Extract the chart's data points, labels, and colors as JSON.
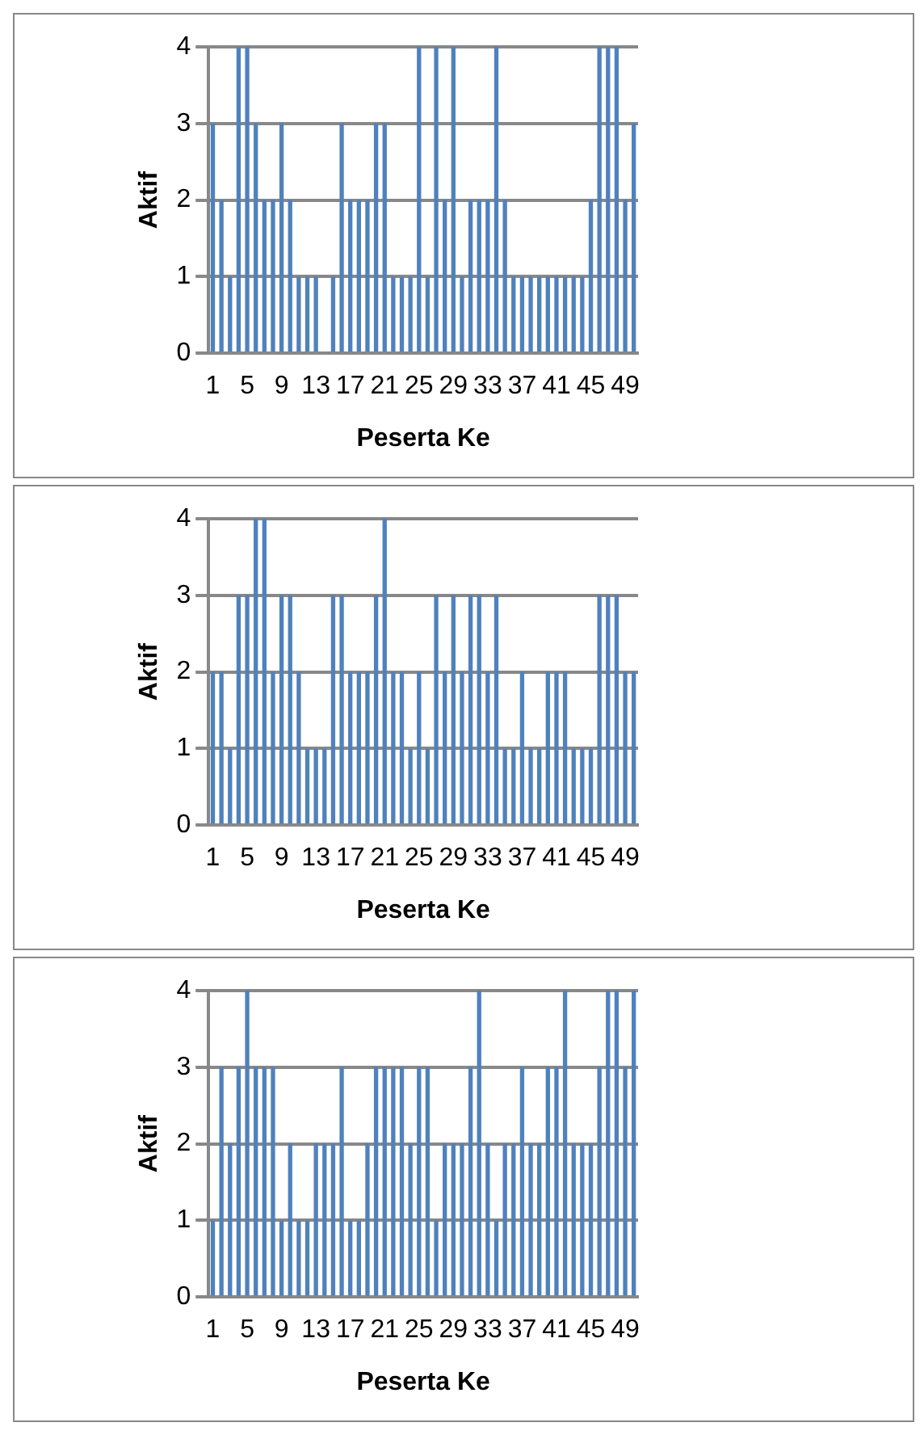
{
  "chart_data": [
    {
      "type": "bar",
      "xlabel": "Peserta Ke",
      "ylabel": "Aktif",
      "categories": [
        "1",
        null,
        null,
        null,
        "5",
        null,
        null,
        null,
        "9",
        null,
        null,
        null,
        "13",
        null,
        null,
        null,
        "17",
        null,
        null,
        null,
        "21",
        null,
        null,
        null,
        "25",
        null,
        null,
        null,
        "29",
        null,
        null,
        null,
        "33",
        null,
        null,
        null,
        "37",
        null,
        null,
        null,
        "41",
        null,
        null,
        null,
        "45",
        null,
        null,
        null,
        "49",
        null
      ],
      "values": [
        3,
        2,
        1,
        4,
        4,
        3,
        2,
        2,
        3,
        2,
        1,
        1,
        1,
        0,
        1,
        3,
        2,
        2,
        2,
        3,
        3,
        1,
        1,
        1,
        4,
        1,
        4,
        2,
        4,
        1,
        2,
        2,
        2,
        4,
        2,
        1,
        1,
        1,
        1,
        1,
        1,
        1,
        1,
        1,
        2,
        4,
        4,
        4,
        2,
        3
      ],
      "color": "#4f81bd",
      "ylim": [
        0,
        4
      ],
      "yticks": [
        0,
        1,
        2,
        3,
        4
      ],
      "grid": "y"
    },
    {
      "type": "bar",
      "xlabel": "Peserta Ke",
      "ylabel": "Aktif",
      "categories": [
        "1",
        null,
        null,
        null,
        "5",
        null,
        null,
        null,
        "9",
        null,
        null,
        null,
        "13",
        null,
        null,
        null,
        "17",
        null,
        null,
        null,
        "21",
        null,
        null,
        null,
        "25",
        null,
        null,
        null,
        "29",
        null,
        null,
        null,
        "33",
        null,
        null,
        null,
        "37",
        null,
        null,
        null,
        "41",
        null,
        null,
        null,
        "45",
        null,
        null,
        null,
        "49",
        null
      ],
      "values": [
        2,
        2,
        1,
        3,
        3,
        4,
        4,
        2,
        3,
        3,
        2,
        1,
        1,
        1,
        3,
        3,
        2,
        2,
        2,
        3,
        4,
        2,
        2,
        1,
        2,
        1,
        3,
        2,
        3,
        2,
        3,
        3,
        2,
        3,
        1,
        1,
        2,
        1,
        1,
        2,
        2,
        2,
        1,
        1,
        1,
        3,
        3,
        3,
        2,
        2
      ],
      "color": "#4f81bd",
      "ylim": [
        0,
        4
      ],
      "yticks": [
        0,
        1,
        2,
        3,
        4
      ],
      "grid": "y"
    },
    {
      "type": "bar",
      "xlabel": "Peserta Ke",
      "ylabel": "Aktif",
      "categories": [
        "1",
        null,
        null,
        null,
        "5",
        null,
        null,
        null,
        "9",
        null,
        null,
        null,
        "13",
        null,
        null,
        null,
        "17",
        null,
        null,
        null,
        "21",
        null,
        null,
        null,
        "25",
        null,
        null,
        null,
        "29",
        null,
        null,
        null,
        "33",
        null,
        null,
        null,
        "37",
        null,
        null,
        null,
        "41",
        null,
        null,
        null,
        "45",
        null,
        null,
        null,
        "49",
        null
      ],
      "values": [
        1,
        3,
        2,
        3,
        4,
        3,
        3,
        3,
        1,
        2,
        1,
        1,
        2,
        2,
        2,
        3,
        1,
        1,
        2,
        3,
        3,
        3,
        3,
        2,
        3,
        3,
        1,
        2,
        2,
        2,
        3,
        4,
        2,
        1,
        2,
        2,
        3,
        2,
        2,
        3,
        3,
        4,
        2,
        2,
        2,
        3,
        4,
        4,
        3,
        4
      ],
      "color": "#4f81bd",
      "ylim": [
        0,
        4
      ],
      "yticks": [
        0,
        1,
        2,
        3,
        4
      ],
      "grid": "y"
    }
  ]
}
